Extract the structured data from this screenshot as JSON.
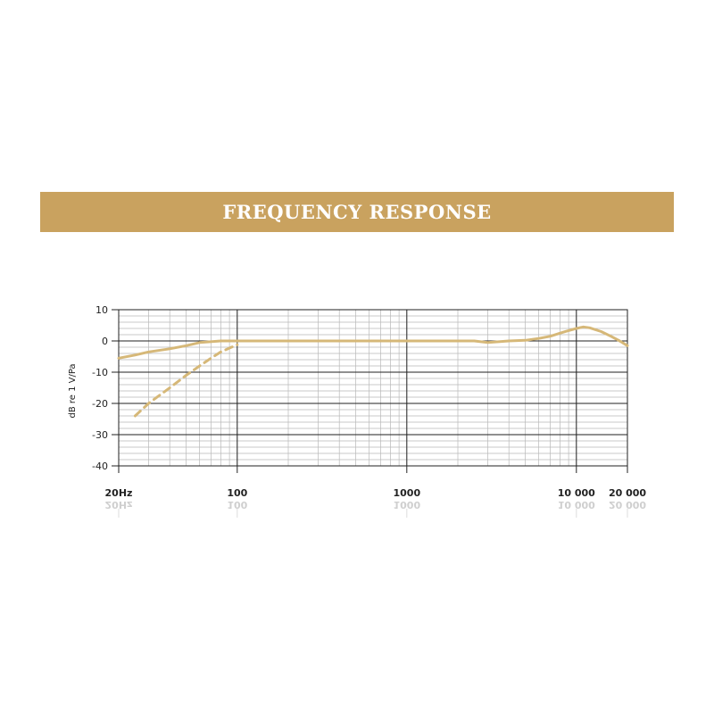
{
  "header": {
    "title": "FREQUENCY RESPONSE",
    "background": "#c9a25f",
    "text_color": "#ffffff"
  },
  "chart_data": {
    "type": "line",
    "title": "FREQUENCY RESPONSE",
    "xlabel": "",
    "ylabel": "dB re 1 V/Pa",
    "xscale": "log",
    "xlim": [
      20,
      20000
    ],
    "ylim": [
      -40,
      10
    ],
    "grid": true,
    "legend": "none",
    "x_tick_values": [
      20,
      100,
      1000,
      10000,
      20000
    ],
    "x_tick_labels": [
      "20Hz",
      "100",
      "1000",
      "10 000",
      "20 000"
    ],
    "y_tick_values": [
      10,
      0,
      -10,
      -20,
      -30,
      -40
    ],
    "y_tick_labels": [
      "10",
      "0",
      "-10",
      "-20",
      "-30",
      "-40"
    ],
    "line_color": "#d6b878",
    "series": [
      {
        "style": "solid",
        "x": [
          20,
          25,
          30,
          40,
          50,
          60,
          80,
          100,
          150,
          200,
          300,
          500,
          700,
          1000,
          1500,
          2000,
          2500,
          3000,
          4000,
          5000,
          6000,
          7000,
          8000,
          9000,
          10000,
          11000,
          12000,
          14000,
          16000,
          18000,
          20000
        ],
        "y": [
          -5.5,
          -4.5,
          -3.5,
          -2.5,
          -1.5,
          -0.5,
          0,
          0,
          0,
          0,
          0,
          0,
          0,
          0,
          0,
          0,
          0,
          -0.5,
          0,
          0.2,
          0.8,
          1.5,
          2.5,
          3.3,
          4.0,
          4.5,
          4.2,
          3.0,
          1.5,
          0,
          -1.5
        ]
      },
      {
        "style": "dashed",
        "x": [
          25,
          30,
          40,
          50,
          60,
          70,
          80,
          100
        ],
        "y": [
          -24,
          -20,
          -15,
          -11,
          -8,
          -5.5,
          -3.5,
          -1.2
        ]
      }
    ]
  }
}
